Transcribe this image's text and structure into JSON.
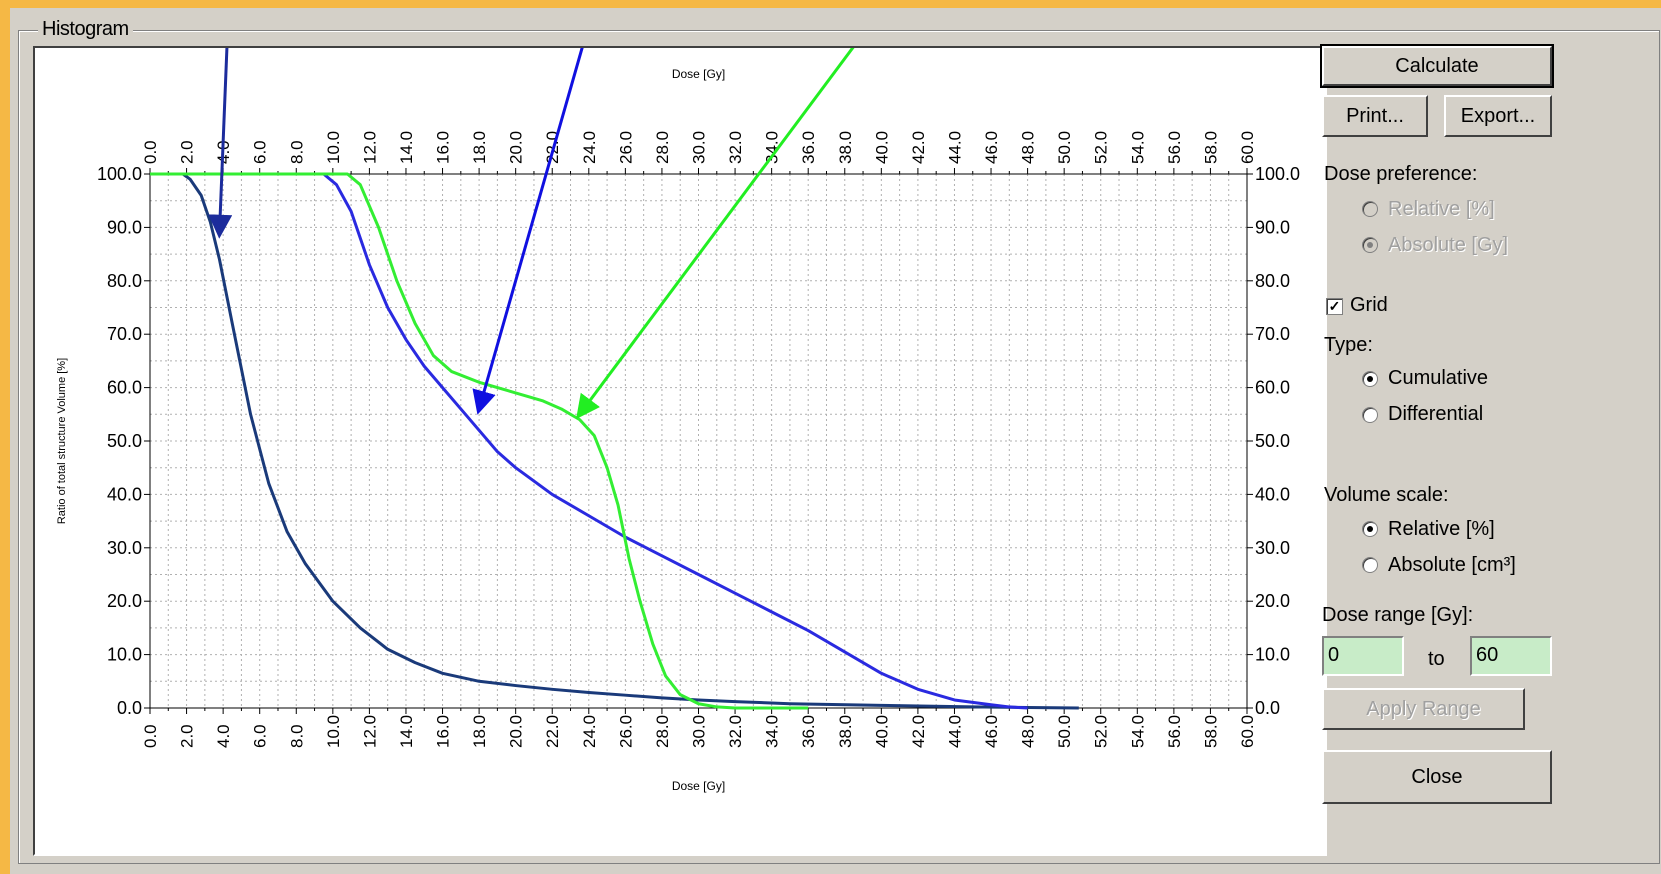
{
  "groupbox": {
    "title": "Histogram"
  },
  "buttons": {
    "calculate": "Calculate",
    "print": "Print...",
    "export": "Export...",
    "apply_range": "Apply Range",
    "close": "Close"
  },
  "dose_preference": {
    "label": "Dose preference:",
    "options": [
      "Relative [%]",
      "Absolute [Gy]"
    ],
    "selected": "Absolute [Gy]"
  },
  "grid": {
    "label": "Grid",
    "checked": true
  },
  "type": {
    "label": "Type:",
    "options": [
      "Cumulative",
      "Differential"
    ],
    "selected": "Cumulative"
  },
  "volume_scale": {
    "label": "Volume scale:",
    "options": [
      "Relative [%]",
      "Absolute [cm³]"
    ],
    "selected": "Relative [%]"
  },
  "dose_range": {
    "label": "Dose range [Gy]:",
    "from": "0",
    "to_label": "to",
    "to": "60"
  },
  "colors": {
    "dark_blue_curve": "#1a3a7a",
    "blue_curve": "#2a2ae0",
    "green_curve": "#33ee33",
    "arrow_dark_blue": "#1c2c9c",
    "arrow_blue": "#1010e0",
    "arrow_green": "#22ee22"
  },
  "chart_data": {
    "type": "line",
    "xlabel": "Dose [Gy]",
    "x2label": "Dose [Gy]",
    "ylabel": "Ratio of total structure Volume [%]",
    "xlim": [
      0,
      60
    ],
    "ylim": [
      0,
      100
    ],
    "x_ticks": [
      "0.0",
      "2.0",
      "4.0",
      "6.0",
      "8.0",
      "10.0",
      "12.0",
      "14.0",
      "16.0",
      "18.0",
      "20.0",
      "22.0",
      "24.0",
      "26.0",
      "28.0",
      "30.0",
      "32.0",
      "34.0",
      "36.0",
      "38.0",
      "40.0",
      "42.0",
      "44.0",
      "46.0",
      "48.0",
      "50.0",
      "52.0",
      "54.0",
      "56.0",
      "58.0",
      "60.0"
    ],
    "y_ticks": [
      "0.0",
      "10.0",
      "20.0",
      "30.0",
      "40.0",
      "50.0",
      "60.0",
      "70.0",
      "80.0",
      "90.0",
      "100.0"
    ],
    "grid": true,
    "series": [
      {
        "color": "#1a3a7a",
        "x": [
          0,
          1.8,
          2.2,
          2.8,
          3.3,
          3.8,
          4.5,
          5.5,
          6.5,
          7.5,
          8.5,
          10,
          11.5,
          13,
          14.5,
          16,
          18,
          20,
          22,
          24,
          26,
          28,
          30,
          32,
          35,
          40,
          45,
          48,
          50.8
        ],
        "y": [
          100,
          100,
          99,
          96,
          91,
          84,
          72,
          55,
          42,
          33,
          27,
          20,
          15,
          11,
          8.5,
          6.5,
          5,
          4.2,
          3.5,
          2.9,
          2.4,
          1.9,
          1.5,
          1.2,
          0.8,
          0.5,
          0.2,
          0.1,
          0
        ]
      },
      {
        "color": "#2a2ae0",
        "x": [
          9.5,
          10.2,
          11,
          12,
          13,
          14,
          15,
          16,
          17,
          18,
          19,
          20,
          22,
          24,
          26,
          28,
          30,
          32,
          34,
          36,
          38,
          40,
          42,
          44,
          46,
          47,
          48
        ],
        "y": [
          100,
          98,
          93,
          83,
          75,
          69,
          64,
          60,
          56,
          52,
          48,
          45,
          40,
          36,
          32,
          28.5,
          25,
          21.5,
          18,
          14.5,
          10.5,
          6.5,
          3.5,
          1.5,
          0.6,
          0.2,
          0
        ]
      },
      {
        "color": "#33ee33",
        "x": [
          0,
          10.8,
          11.5,
          12.5,
          13.5,
          14.5,
          15.5,
          16.5,
          18,
          20,
          21.5,
          22.5,
          23.5,
          24.3,
          25,
          25.6,
          26.2,
          26.8,
          27.5,
          28.2,
          29,
          30,
          31,
          32,
          33,
          36
        ],
        "y": [
          100,
          100,
          98,
          90,
          80,
          72,
          66,
          63,
          61,
          59,
          57.5,
          56,
          54,
          51,
          45,
          38,
          28,
          20,
          12,
          6,
          2.5,
          0.8,
          0.2,
          0,
          0,
          0
        ]
      }
    ],
    "annotations": [
      {
        "color": "#1c2c9c",
        "from": [
          4.4,
          140
        ],
        "to": [
          3.8,
          89
        ]
      },
      {
        "color": "#1010e0",
        "from": [
          25,
          140
        ],
        "to": [
          18,
          56
        ]
      },
      {
        "color": "#22ee22",
        "from": [
          42,
          140
        ],
        "to": [
          23.5,
          55
        ]
      }
    ]
  }
}
